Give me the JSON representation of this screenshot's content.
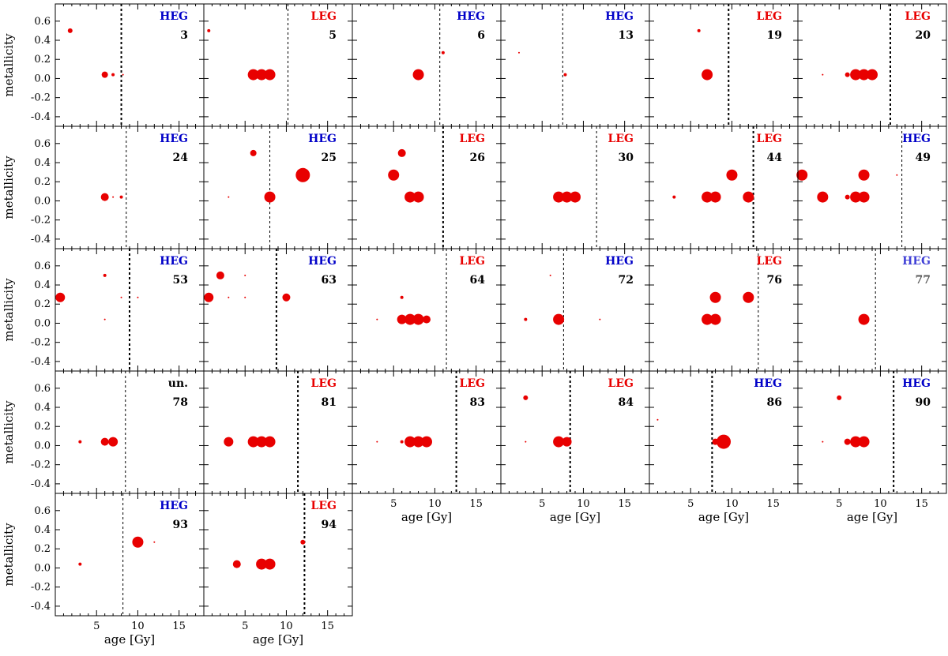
{
  "chart_data": {
    "type": "scatter",
    "x_label": "age [Gy]",
    "y_label": "metallicity",
    "xlim": [
      0,
      18
    ],
    "ylim": [
      -0.5,
      0.78
    ],
    "x_ticks": [
      5,
      10,
      15
    ],
    "y_ticks": [
      -0.4,
      -0.2,
      0.0,
      0.2,
      0.4,
      0.6
    ],
    "y_tick_labels": [
      "-0.4",
      "-0.2",
      "0.0",
      "0.2",
      "0.4",
      "0.6"
    ],
    "grid": false,
    "marker_color": "#e80000",
    "class_colors": {
      "HEG": "#0000c8",
      "LEG": "#e80000",
      "un.": "#000000"
    },
    "panels": [
      {
        "id": "3",
        "class": "HEG",
        "vline": 8.0,
        "vline_style": "thick",
        "points": [
          [
            1.8,
            0.5,
            3
          ],
          [
            6.0,
            0.04,
            4
          ],
          [
            7.0,
            0.04,
            2
          ],
          [
            8.2,
            0.04,
            1
          ]
        ]
      },
      {
        "id": "5",
        "class": "LEG",
        "vline": 10.2,
        "vline_style": "thin",
        "points": [
          [
            0.6,
            0.5,
            2
          ],
          [
            6.0,
            0.04,
            7
          ],
          [
            7.0,
            0.04,
            7
          ],
          [
            8.0,
            0.04,
            7
          ]
        ]
      },
      {
        "id": "6",
        "class": "HEG",
        "vline": 10.6,
        "vline_style": "thin",
        "points": [
          [
            8.0,
            0.04,
            7
          ],
          [
            11.0,
            0.27,
            2
          ]
        ]
      },
      {
        "id": "13",
        "class": "HEG",
        "vline": 7.5,
        "vline_style": "thin",
        "points": [
          [
            2.2,
            0.27,
            1
          ],
          [
            7.8,
            0.04,
            2
          ]
        ]
      },
      {
        "id": "19",
        "class": "LEG",
        "vline": 9.6,
        "vline_style": "thick",
        "points": [
          [
            6.0,
            0.5,
            2
          ],
          [
            7.0,
            0.04,
            7
          ]
        ]
      },
      {
        "id": "20",
        "class": "LEG",
        "vline": 11.2,
        "vline_style": "thick",
        "points": [
          [
            3.0,
            0.04,
            1
          ],
          [
            6.0,
            0.04,
            3
          ],
          [
            7.0,
            0.04,
            7
          ],
          [
            8.0,
            0.04,
            7
          ],
          [
            9.0,
            0.04,
            7
          ]
        ]
      },
      {
        "id": "24",
        "class": "HEG",
        "vline": 8.6,
        "vline_style": "thin",
        "points": [
          [
            6.0,
            0.04,
            5
          ],
          [
            7.0,
            0.04,
            1
          ],
          [
            8.0,
            0.04,
            2
          ]
        ]
      },
      {
        "id": "25",
        "class": "HEG",
        "vline": 8.0,
        "vline_style": "thin",
        "points": [
          [
            6.0,
            0.5,
            4
          ],
          [
            3.0,
            0.04,
            1
          ],
          [
            8.0,
            0.04,
            7
          ],
          [
            12.0,
            0.27,
            9
          ]
        ]
      },
      {
        "id": "26",
        "class": "LEG",
        "vline": 11.0,
        "vline_style": "thick",
        "points": [
          [
            6.0,
            0.5,
            5
          ],
          [
            5.0,
            0.27,
            7
          ],
          [
            7.0,
            0.04,
            7
          ],
          [
            8.0,
            0.04,
            7
          ]
        ]
      },
      {
        "id": "30",
        "class": "LEG",
        "vline": 11.6,
        "vline_style": "thin",
        "points": [
          [
            7.0,
            0.04,
            7
          ],
          [
            8.0,
            0.04,
            7
          ],
          [
            9.0,
            0.04,
            7
          ]
        ]
      },
      {
        "id": "44",
        "class": "LEG",
        "vline": 12.6,
        "vline_style": "thick",
        "points": [
          [
            3.0,
            0.04,
            2
          ],
          [
            10.0,
            0.27,
            7
          ],
          [
            7.0,
            0.04,
            7
          ],
          [
            8.0,
            0.04,
            7
          ],
          [
            12.0,
            0.04,
            7
          ]
        ]
      },
      {
        "id": "49",
        "class": "HEG",
        "vline": 12.6,
        "vline_style": "thin",
        "points": [
          [
            0.5,
            0.27,
            7
          ],
          [
            8.0,
            0.27,
            7
          ],
          [
            3.0,
            0.04,
            7
          ],
          [
            6.0,
            0.04,
            3
          ],
          [
            7.0,
            0.04,
            7
          ],
          [
            8.0,
            0.04,
            7
          ],
          [
            12.0,
            0.27,
            1
          ]
        ]
      },
      {
        "id": "53",
        "class": "HEG",
        "vline": 9.0,
        "vline_style": "thick",
        "points": [
          [
            0.6,
            0.27,
            6
          ],
          [
            6.0,
            0.5,
            2
          ],
          [
            6.0,
            0.04,
            1
          ],
          [
            10.0,
            0.27,
            1
          ],
          [
            8.0,
            0.27,
            1
          ]
        ]
      },
      {
        "id": "63",
        "class": "HEG",
        "vline": 8.8,
        "vline_style": "thick",
        "points": [
          [
            2.0,
            0.5,
            5
          ],
          [
            0.6,
            0.27,
            6
          ],
          [
            5.0,
            0.5,
            1
          ],
          [
            10.0,
            0.27,
            5
          ],
          [
            3.0,
            0.27,
            1
          ],
          [
            5.0,
            0.27,
            1
          ]
        ]
      },
      {
        "id": "64",
        "class": "LEG",
        "vline": 11.4,
        "vline_style": "thin",
        "points": [
          [
            6.0,
            0.27,
            2
          ],
          [
            6.0,
            0.04,
            6
          ],
          [
            7.0,
            0.04,
            7
          ],
          [
            8.0,
            0.04,
            7
          ],
          [
            9.0,
            0.04,
            5
          ],
          [
            3.0,
            0.04,
            1
          ]
        ]
      },
      {
        "id": "72",
        "class": "HEG",
        "vline": 7.6,
        "vline_style": "thin",
        "points": [
          [
            3.0,
            0.04,
            2
          ],
          [
            7.0,
            0.04,
            7
          ],
          [
            12.0,
            0.04,
            1
          ],
          [
            6.0,
            0.5,
            1
          ]
        ]
      },
      {
        "id": "76",
        "class": "LEG",
        "vline": 13.2,
        "vline_style": "thin",
        "points": [
          [
            8.0,
            0.27,
            7
          ],
          [
            12.0,
            0.27,
            7
          ],
          [
            7.0,
            0.04,
            7
          ],
          [
            8.0,
            0.04,
            7
          ]
        ]
      },
      {
        "id": "77",
        "class": "HEG",
        "vline": 9.4,
        "vline_style": "faint",
        "faint_labels": true,
        "points": [
          [
            8.0,
            0.04,
            7
          ]
        ]
      },
      {
        "id": "78",
        "class": "un.",
        "vline": 8.5,
        "vline_style": "thin",
        "points": [
          [
            3.0,
            0.04,
            2
          ],
          [
            6.0,
            0.04,
            5
          ],
          [
            7.0,
            0.04,
            6
          ]
        ]
      },
      {
        "id": "81",
        "class": "LEG",
        "vline": 11.4,
        "vline_style": "thick",
        "points": [
          [
            3.0,
            0.04,
            6
          ],
          [
            6.0,
            0.04,
            7
          ],
          [
            7.0,
            0.04,
            7
          ],
          [
            8.0,
            0.04,
            7
          ]
        ]
      },
      {
        "id": "83",
        "class": "LEG",
        "vline": 12.6,
        "vline_style": "thick",
        "points": [
          [
            6.0,
            0.04,
            2
          ],
          [
            7.0,
            0.04,
            7
          ],
          [
            8.0,
            0.04,
            7
          ],
          [
            9.0,
            0.04,
            7
          ],
          [
            3.0,
            0.04,
            1
          ]
        ]
      },
      {
        "id": "84",
        "class": "LEG",
        "vline": 8.4,
        "vline_style": "thick",
        "points": [
          [
            3.0,
            0.5,
            3
          ],
          [
            3.0,
            0.04,
            1
          ],
          [
            7.0,
            0.04,
            7
          ],
          [
            8.0,
            0.04,
            6
          ]
        ]
      },
      {
        "id": "86",
        "class": "HEG",
        "vline": 7.6,
        "vline_style": "thick",
        "points": [
          [
            8.0,
            0.04,
            4
          ],
          [
            9.0,
            0.04,
            9
          ],
          [
            1.0,
            0.27,
            1
          ]
        ]
      },
      {
        "id": "90",
        "class": "HEG",
        "vline": 11.6,
        "vline_style": "thick",
        "points": [
          [
            5.0,
            0.5,
            3
          ],
          [
            6.0,
            0.04,
            4
          ],
          [
            7.0,
            0.04,
            7
          ],
          [
            8.0,
            0.04,
            7
          ],
          [
            3.0,
            0.04,
            1
          ]
        ]
      },
      {
        "id": "93",
        "class": "HEG",
        "vline": 8.2,
        "vline_style": "thin",
        "points": [
          [
            10.0,
            0.27,
            7
          ],
          [
            3.0,
            0.04,
            2
          ],
          [
            12.0,
            0.27,
            1
          ]
        ]
      },
      {
        "id": "94",
        "class": "LEG",
        "vline": 12.2,
        "vline_style": "thick",
        "points": [
          [
            12.0,
            0.27,
            3
          ],
          [
            4.0,
            0.04,
            5
          ],
          [
            7.0,
            0.04,
            7
          ],
          [
            8.0,
            0.04,
            7
          ]
        ]
      }
    ]
  }
}
